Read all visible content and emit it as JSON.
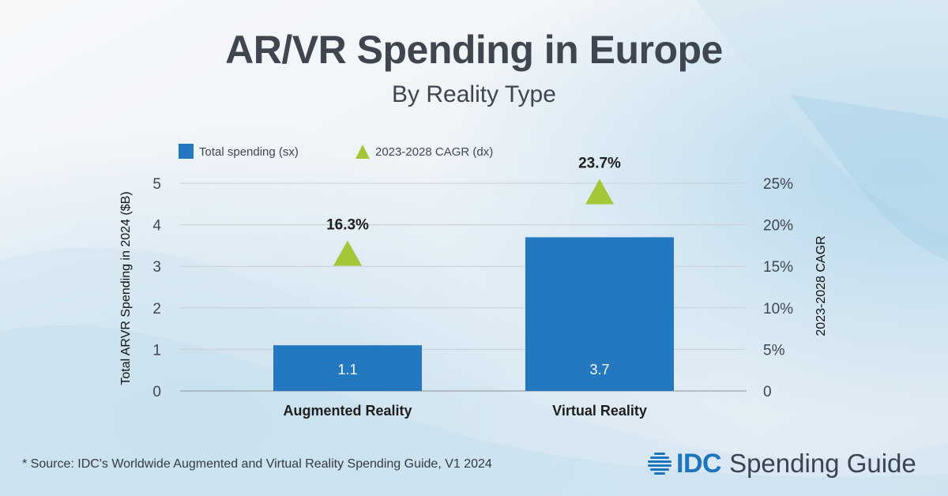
{
  "title": "AR/VR Spending in Europe",
  "subtitle": "By Reality Type",
  "source": "* Source: IDC's Worldwide Augmented and Virtual Reality Spending Guide, V1 2024",
  "brand": {
    "name": "IDC",
    "product": "Spending Guide",
    "icon": "idc-globe-icon"
  },
  "colors": {
    "bar": "#2478bf",
    "triangle": "#a4c639",
    "text": "#3f4650",
    "grid": "#c9ced4"
  },
  "chart_data": {
    "type": "bar",
    "categories": [
      "Augmented Reality",
      "Virtual Reality"
    ],
    "series": [
      {
        "name": "Total spending (sx)",
        "axis": "left",
        "type": "bar",
        "values": [
          1.1,
          3.7
        ],
        "data_labels": [
          "1.1",
          "3.7"
        ]
      },
      {
        "name": "2023-2028 CAGR (dx)",
        "axis": "right",
        "type": "marker",
        "marker": "triangle",
        "values": [
          16.3,
          23.7
        ],
        "data_labels": [
          "16.3%",
          "23.7%"
        ]
      }
    ],
    "ylabel": "Total ARVR Spending in 2024 ($B)",
    "ylabel_right": "2023-2028 CAGR",
    "ylim": [
      0,
      5
    ],
    "ylim_right": [
      0,
      25
    ],
    "yticks": [
      "0",
      "1",
      "2",
      "3",
      "4",
      "5"
    ],
    "yticks_right": [
      "0",
      "5%",
      "10%",
      "15%",
      "20%",
      "25%"
    ],
    "grid": true,
    "legend": "top-left"
  }
}
